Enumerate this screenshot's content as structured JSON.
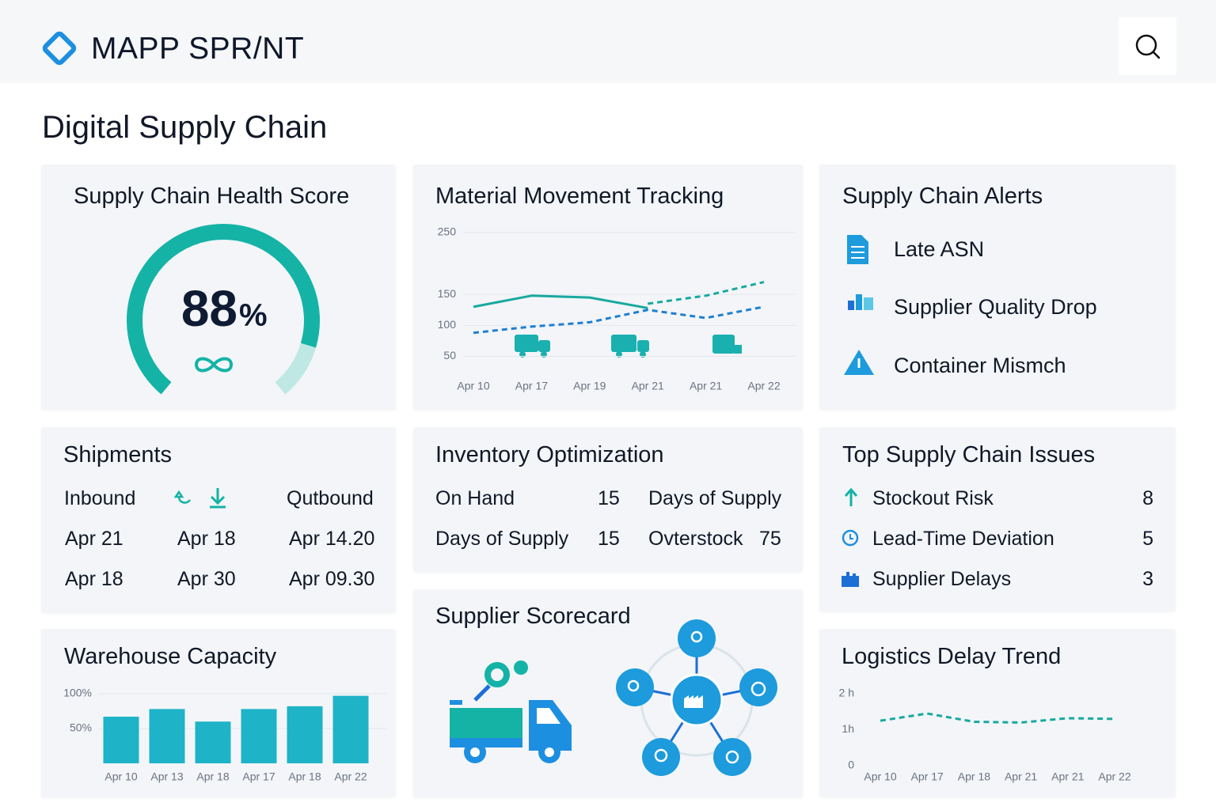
{
  "header": {
    "brand": "MAPP SPR/NT"
  },
  "page_title": "Digital Supply Chain",
  "health_score": {
    "title": "Supply Chain Health Score",
    "chart_data": {
      "type": "gauge",
      "value": 88,
      "unit": "%",
      "ylim": [
        0,
        100
      ],
      "color": "#14b3a6",
      "track_color": "#bfe8e4"
    }
  },
  "material_movement": {
    "title": "Material Movement Tracking",
    "chart_data": {
      "type": "line",
      "categories": [
        "Apr 10",
        "Apr 17",
        "Apr 19",
        "Apr 21",
        "Apr 21",
        "Apr 22"
      ],
      "series": [
        {
          "color": "#18a99f",
          "dashed": false,
          "values": [
            130,
            148,
            145,
            128,
            null,
            null
          ]
        },
        {
          "color": "#1f7fd1",
          "dashed": true,
          "values": [
            88,
            98,
            105,
            125,
            112,
            130
          ]
        },
        {
          "color": "#18a99f",
          "dashed": true,
          "values": [
            null,
            null,
            null,
            135,
            148,
            170
          ]
        }
      ],
      "ylim": [
        25,
        250
      ],
      "yticks": [
        50,
        100,
        150,
        250
      ],
      "grid": true
    }
  },
  "alerts": {
    "title": "Supply Chain Alerts",
    "items": [
      "Late ASN",
      "Supplier Quality Drop",
      "Container Mismch"
    ]
  },
  "shipments": {
    "title": "Shipments",
    "columns": {
      "inbound": "Inbound",
      "outbound": "Qutbound"
    },
    "rows": [
      [
        "Apr 21",
        "Apr 18",
        "Apr 14.20"
      ],
      [
        "Apr 18",
        "Apr 30",
        "Apr 09.30"
      ]
    ]
  },
  "inventory": {
    "title": "Inventory Optimization",
    "rows": [
      [
        "On Hand",
        15,
        "Days of Supply"
      ],
      [
        "Days of Supply",
        15,
        "Ovterstock",
        75
      ]
    ]
  },
  "top_issues": {
    "title": "Top Supply Chain Issues",
    "items": [
      {
        "label": "Stockout Risk",
        "count": 8
      },
      {
        "label": "Lead-Time Deviation",
        "count": 5
      },
      {
        "label": "Supplier Delays",
        "count": 3
      }
    ]
  },
  "warehouse_capacity": {
    "title": "Warehouse Capacity",
    "chart_data": {
      "type": "bar",
      "categories": [
        "Apr 10",
        "Apr 13",
        "Apr 18",
        "Apr 17",
        "Apr 18",
        "Apr 22"
      ],
      "values": [
        67,
        78,
        60,
        78,
        82,
        97
      ],
      "color": "#1fb3c8",
      "ylim": [
        0,
        100
      ],
      "yticks": [
        {
          "value": 50,
          "label": "50%"
        },
        {
          "value": 100,
          "label": "100%"
        }
      ],
      "grid": true
    }
  },
  "supplier_scorecard": {
    "title": "Supplier Scorecard"
  },
  "logistics_delay": {
    "title": "Logistics Delay Trend",
    "chart_data": {
      "type": "line",
      "categories": [
        "Apr 10",
        "Apr 17",
        "Apr 18",
        "Apr 21",
        "Apr 21",
        "Apr 22"
      ],
      "series": [
        {
          "color": "#18a99f",
          "dashed": true,
          "values": [
            1.25,
            1.45,
            1.22,
            1.2,
            1.32,
            1.3
          ]
        }
      ],
      "ylim": [
        0,
        2
      ],
      "yticks": [
        0,
        {
          "value": 1,
          "label": "1h"
        },
        {
          "value": 2,
          "label": "2 h"
        }
      ],
      "grid": false
    }
  }
}
